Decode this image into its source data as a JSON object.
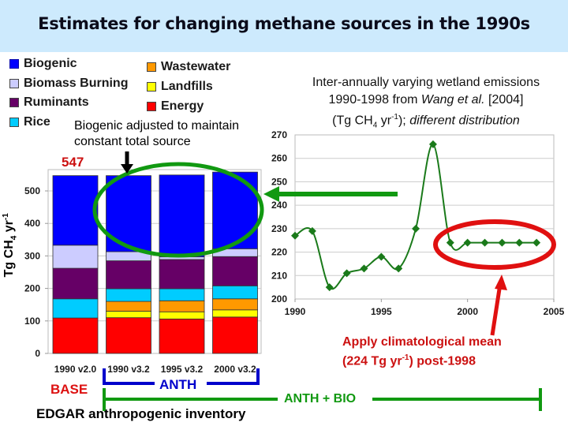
{
  "title": "Estimates for changing methane sources in the 1990s",
  "colors": {
    "biogenic": "#0000ff",
    "biomass_burning": "#ccccff",
    "ruminants": "#660066",
    "rice": "#00ccff",
    "wastewater": "#ff9900",
    "landfills": "#ffff00",
    "energy": "#ff0000",
    "green": "#119911",
    "red_annotation": "#e01010",
    "bracket_blue": "#0000cc",
    "title_bg": "#cdeafd"
  },
  "legend": {
    "items": [
      {
        "label": "Biogenic",
        "color": "#0000ff"
      },
      {
        "label": "Biomass Burning",
        "color": "#ccccff"
      },
      {
        "label": "Ruminants",
        "color": "#660066"
      },
      {
        "label": "Rice",
        "color": "#00ccff"
      },
      {
        "label": "Wastewater",
        "color": "#ff9900"
      },
      {
        "label": "Landfills",
        "color": "#ffff00"
      },
      {
        "label": "Energy",
        "color": "#ff0000"
      }
    ]
  },
  "annotations": {
    "biogenic_note_line1": "Biogenic adjusted to maintain",
    "biogenic_note_line2": "constant total source",
    "total_547": "547",
    "wetland_line1": "Inter-annually varying wetland emissions",
    "wetland_line2_pre": "1990-1998 from ",
    "wetland_line2_ital": "Wang et al.",
    "wetland_line2_post": " [2004]",
    "wetland_line3_pre": "(Tg CH",
    "wetland_line3_sub": "4",
    "wetland_line3_mid": " yr",
    "wetland_line3_sup": "-1",
    "wetland_line3_post": "); ",
    "wetland_line3_ital": "different distribution",
    "climatology_line1": "Apply climatological mean",
    "climatology_line2_pre": "(224 Tg yr",
    "climatology_line2_sup": "-1",
    "climatology_line2_post": ") post-1998",
    "ylabel_pre": "Tg CH",
    "ylabel_sub": "4",
    "ylabel_mid": " yr",
    "ylabel_sup": "-1",
    "base_label": "BASE",
    "anth_label": "ANTH",
    "anth_bio_label": "ANTH + BIO",
    "edgar_label": "EDGAR anthropogenic inventory"
  },
  "chart_data": [
    {
      "type": "bar",
      "stacked": true,
      "title": "",
      "xlabel": "",
      "ylabel": "Tg CH4 yr-1",
      "ylim": [
        0,
        550
      ],
      "yticks": [
        0,
        100,
        200,
        300,
        400,
        500
      ],
      "grid": true,
      "categories": [
        "1990 v2.0",
        "1990 v3.2",
        "1995 v3.2",
        "2000 v3.2"
      ],
      "series": [
        {
          "name": "Energy",
          "color": "#ff0000",
          "values": [
            109,
            110,
            106,
            112
          ]
        },
        {
          "name": "Landfills",
          "color": "#ffff00",
          "values": [
            0,
            20,
            22,
            22
          ]
        },
        {
          "name": "Wastewater",
          "color": "#ff9900",
          "values": [
            0,
            30,
            34,
            34
          ]
        },
        {
          "name": "Rice",
          "color": "#00ccff",
          "values": [
            59,
            39,
            37,
            40
          ]
        },
        {
          "name": "Ruminants",
          "color": "#660066",
          "values": [
            94,
            86,
            90,
            90
          ]
        },
        {
          "name": "Biomass Burning",
          "color": "#ccccff",
          "values": [
            71,
            28,
            8,
            24
          ]
        },
        {
          "name": "Biogenic",
          "color": "#0000ff",
          "values": [
            214,
            234,
            252,
            236
          ]
        }
      ],
      "totals": [
        547,
        547,
        549,
        558
      ],
      "annotations": [
        "547"
      ]
    },
    {
      "type": "line",
      "title": "Inter-annually varying wetland emissions 1990-1998 from Wang et al. [2004] (Tg CH4 yr-1); different distribution",
      "xlabel": "",
      "ylabel": "",
      "xlim": [
        1990,
        2005
      ],
      "ylim": [
        200,
        270
      ],
      "xticks": [
        1990,
        1995,
        2000,
        2005
      ],
      "yticks": [
        200,
        210,
        220,
        230,
        240,
        250,
        260,
        270
      ],
      "grid": true,
      "x": [
        1990,
        1991,
        1992,
        1993,
        1994,
        1995,
        1996,
        1997,
        1998,
        1999,
        2000,
        2001,
        2002,
        2003,
        2004
      ],
      "series": [
        {
          "name": "Wetland emissions",
          "color": "#1a7a1a",
          "values": [
            227,
            229,
            205,
            211,
            213,
            218,
            213,
            230,
            266,
            224,
            224,
            224,
            224,
            224,
            224
          ]
        }
      ],
      "annotations": [
        "Apply climatological mean (224 Tg yr-1) post-1998"
      ]
    }
  ]
}
